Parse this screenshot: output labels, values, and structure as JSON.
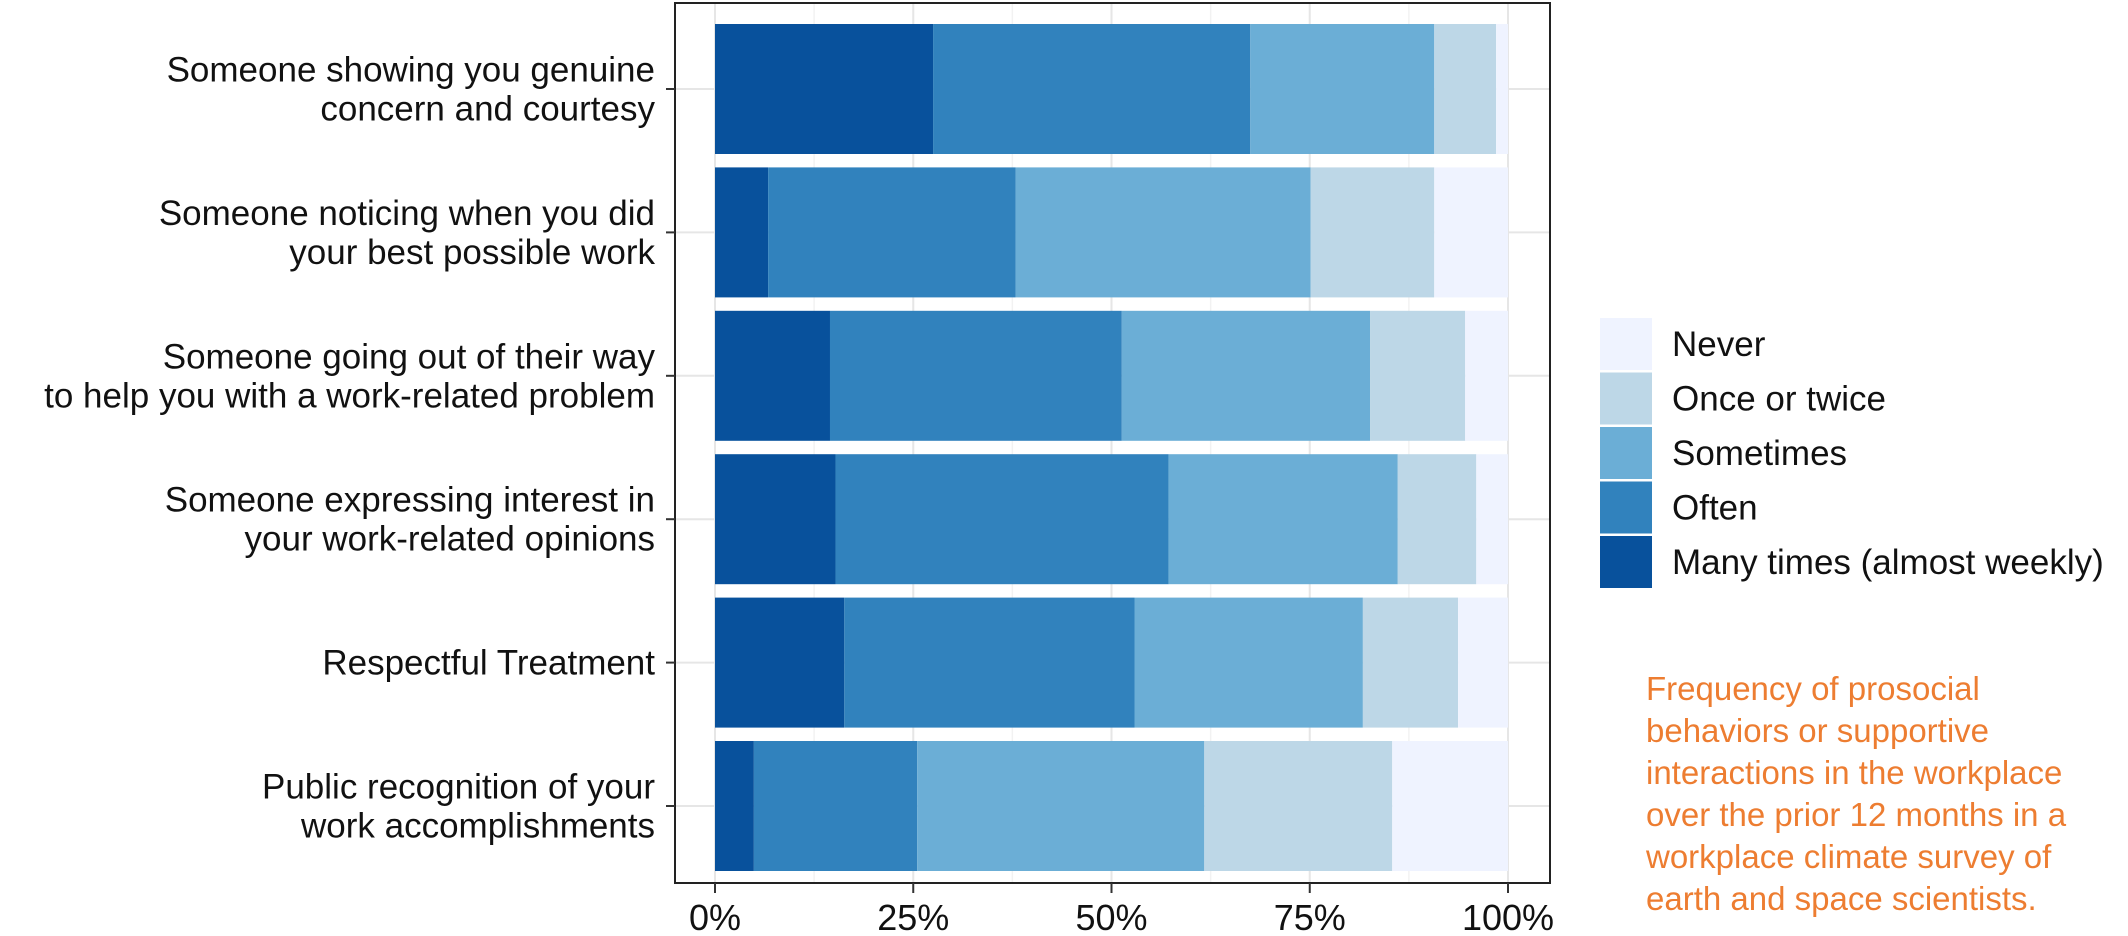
{
  "chart_data": {
    "type": "bar",
    "orientation": "horizontal",
    "stacked": true,
    "categories": [
      "Someone showing you genuine\nconcern and courtesy",
      "Someone noticing when you did\nyour best possible work",
      "Someone going out of their way\nto help you with a work-related problem",
      "Someone expressing interest in\nyour work-related opinions",
      "Respectful Treatment",
      "Public recognition of your\nwork accomplishments"
    ],
    "series": [
      {
        "name": "Many times (almost weekly)",
        "color": "#08519c",
        "values": [
          0.275,
          0.067,
          0.145,
          0.152,
          0.163,
          0.049
        ]
      },
      {
        "name": "Often",
        "color": "#3182bd",
        "values": [
          0.4,
          0.312,
          0.368,
          0.42,
          0.366,
          0.206
        ]
      },
      {
        "name": "Sometimes",
        "color": "#6baed6",
        "values": [
          0.232,
          0.372,
          0.313,
          0.289,
          0.288,
          0.362
        ]
      },
      {
        "name": "Once or twice",
        "color": "#bdd7e7",
        "values": [
          0.078,
          0.156,
          0.12,
          0.099,
          0.12,
          0.237
        ]
      },
      {
        "name": "Never",
        "color": "#eff3ff",
        "values": [
          0.015,
          0.093,
          0.054,
          0.04,
          0.063,
          0.146
        ]
      }
    ],
    "legend_order": [
      "Never",
      "Once or twice",
      "Sometimes",
      "Often",
      "Many times (almost weekly)"
    ],
    "xlim": [
      0,
      1
    ],
    "x_ticks": [
      "0%",
      "25%",
      "50%",
      "75%",
      "100%"
    ],
    "xlabel": "",
    "ylabel": "",
    "grid": true,
    "legend_position": "right"
  },
  "caption": {
    "text": "Frequency of prosocial\nbehaviors or supportive\ninteractions in the workplace\nover the prior 12 months in a\nworkplace climate survey of\nearth and space scientists.",
    "color": "#ed7d31"
  }
}
